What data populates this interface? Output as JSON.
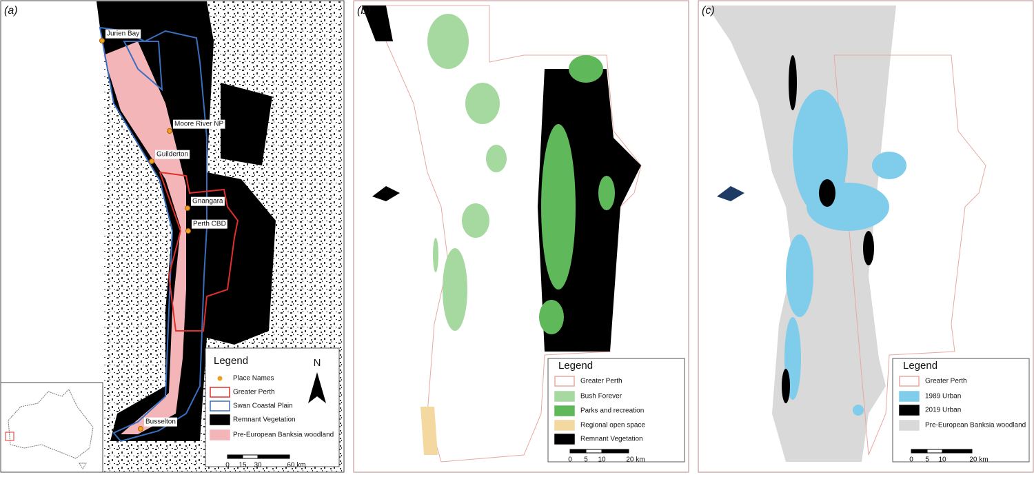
{
  "panels": [
    {
      "label": "(a)",
      "places": [
        "Jurien Bay",
        "Moore River NP",
        "Guilderton",
        "Gnangara",
        "Perth CBD",
        "Busselton"
      ],
      "legend": {
        "title": "Legend",
        "items": [
          "Place Names",
          "Greater Perth",
          "Swan Coastal Plain",
          "Remnant Vegetation",
          "Pre-European Banksia woodland"
        ]
      },
      "north": "N",
      "scale": [
        "0",
        "15",
        "30",
        "60 km"
      ]
    },
    {
      "label": "(b)",
      "legend": {
        "title": "Legend",
        "items": [
          "Greater Perth",
          "Bush Forever",
          "Parks and recreation",
          "Regional open space",
          "Remnant Vegetation"
        ]
      },
      "scale": [
        "0",
        "5",
        "10",
        "20 km"
      ]
    },
    {
      "label": "(c)",
      "legend": {
        "title": "Legend",
        "items": [
          "Greater Perth",
          "1989 Urban",
          "2019 Urban",
          "Pre-European Banksia woodland"
        ]
      },
      "scale": [
        "0",
        "5",
        "10",
        "20 km"
      ]
    }
  ]
}
